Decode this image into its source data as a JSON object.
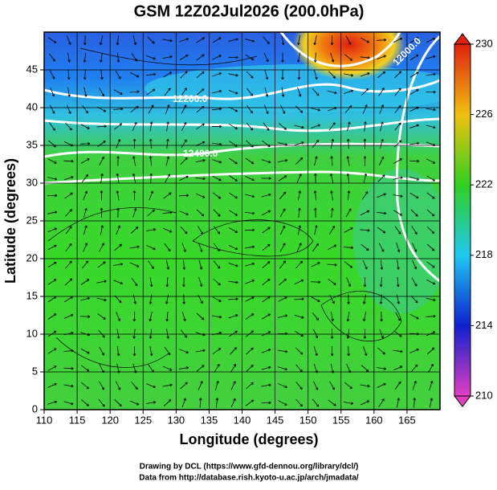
{
  "chart_data": {
    "type": "map",
    "title": "GSM 12Z02Jul2026 (200.0hPa)",
    "x_label": "Longitude (degrees)",
    "y_label": "Latitude  (degrees)",
    "xlim": [
      110,
      170
    ],
    "xticks": [
      110,
      115,
      120,
      125,
      130,
      135,
      140,
      145,
      150,
      155,
      160,
      165
    ],
    "ylim": [
      0,
      50
    ],
    "yticks": [
      0,
      5,
      10,
      15,
      20,
      25,
      30,
      35,
      40,
      45
    ],
    "grid": true,
    "colorbar": {
      "lim": [
        210,
        230
      ],
      "ticks": [
        210,
        214,
        218,
        222,
        226,
        230
      ],
      "colors": [
        "#e040c0",
        "#1020d0",
        "#20c8f0",
        "#30d020",
        "#f0c010",
        "#e02010"
      ]
    },
    "annotations": [
      "12200.0",
      "12400.0",
      "12000.0"
    ],
    "footer": [
      "Drawing by DCL (https://www.gfd-dennou.org/library/dcl/)",
      "Data from http://database.rish.kyoto-u.ac.jp/arch/jmadata/"
    ]
  }
}
